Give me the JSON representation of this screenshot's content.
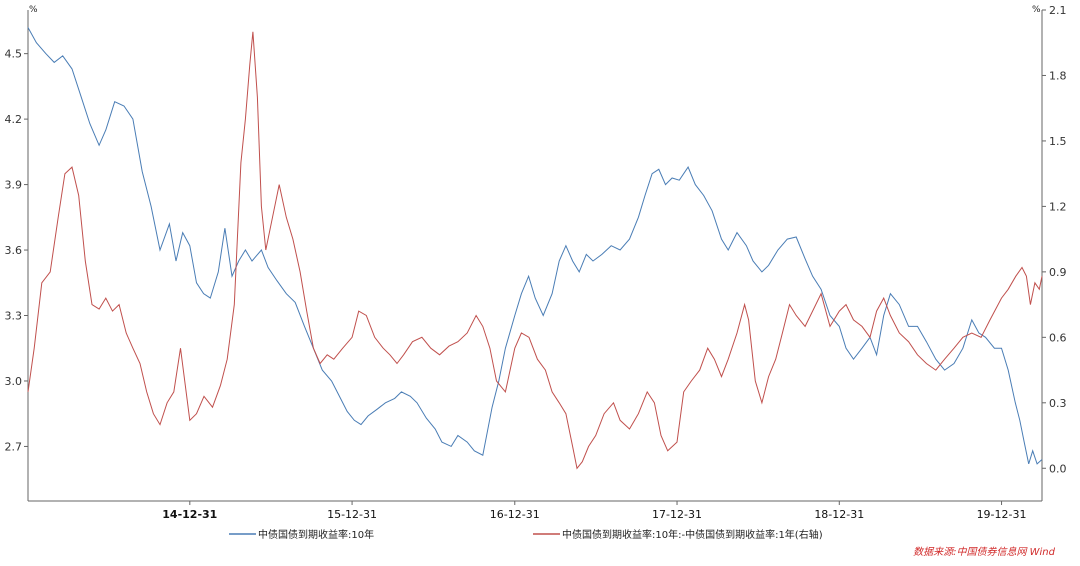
{
  "chart_data": {
    "type": "line",
    "left_unit": "%",
    "right_unit": "%",
    "left_axis": {
      "ylim": [
        2.45,
        4.7
      ],
      "ticks": [
        "2.7",
        "3.0",
        "3.3",
        "3.6",
        "3.9",
        "4.2",
        "4.5"
      ]
    },
    "right_axis": {
      "ylim": [
        -0.15,
        2.1
      ],
      "ticks": [
        "0.0",
        "0.3",
        "0.6",
        "0.9",
        "1.2",
        "1.5",
        "1.8",
        "2.1"
      ]
    },
    "x_range": [
      "2014-01-01",
      "2020-03-31"
    ],
    "x_ticks": [
      {
        "date": "2014-12-31",
        "label": "14-12-31"
      },
      {
        "date": "2015-12-31",
        "label": "15-12-31"
      },
      {
        "date": "2016-12-31",
        "label": "16-12-31"
      },
      {
        "date": "2017-12-31",
        "label": "17-12-31"
      },
      {
        "date": "2018-12-31",
        "label": "18-12-31"
      },
      {
        "date": "2019-12-31",
        "label": "19-12-31"
      }
    ],
    "series": [
      {
        "name": "中债国债到期收益率:10年",
        "axis": "left",
        "color": "#4a7db5",
        "points": [
          [
            "2014-01-01",
            4.62
          ],
          [
            "2014-01-20",
            4.55
          ],
          [
            "2014-02-10",
            4.5
          ],
          [
            "2014-03-01",
            4.46
          ],
          [
            "2014-03-20",
            4.49
          ],
          [
            "2014-04-10",
            4.43
          ],
          [
            "2014-05-01",
            4.3
          ],
          [
            "2014-05-20",
            4.18
          ],
          [
            "2014-06-10",
            4.08
          ],
          [
            "2014-06-25",
            4.15
          ],
          [
            "2014-07-15",
            4.28
          ],
          [
            "2014-08-05",
            4.26
          ],
          [
            "2014-08-25",
            4.2
          ],
          [
            "2014-09-15",
            3.96
          ],
          [
            "2014-10-05",
            3.8
          ],
          [
            "2014-10-25",
            3.6
          ],
          [
            "2014-11-15",
            3.72
          ],
          [
            "2014-11-30",
            3.55
          ],
          [
            "2014-12-15",
            3.68
          ],
          [
            "2014-12-31",
            3.62
          ],
          [
            "2015-01-15",
            3.45
          ],
          [
            "2015-01-31",
            3.4
          ],
          [
            "2015-02-15",
            3.38
          ],
          [
            "2015-03-05",
            3.5
          ],
          [
            "2015-03-20",
            3.7
          ],
          [
            "2015-04-05",
            3.48
          ],
          [
            "2015-04-20",
            3.55
          ],
          [
            "2015-05-05",
            3.6
          ],
          [
            "2015-05-20",
            3.55
          ],
          [
            "2015-06-10",
            3.6
          ],
          [
            "2015-06-25",
            3.52
          ],
          [
            "2015-07-15",
            3.46
          ],
          [
            "2015-08-05",
            3.4
          ],
          [
            "2015-08-25",
            3.36
          ],
          [
            "2015-09-15",
            3.25
          ],
          [
            "2015-10-05",
            3.15
          ],
          [
            "2015-10-25",
            3.05
          ],
          [
            "2015-11-15",
            3.0
          ],
          [
            "2015-12-05",
            2.92
          ],
          [
            "2015-12-20",
            2.86
          ],
          [
            "2016-01-05",
            2.82
          ],
          [
            "2016-01-20",
            2.8
          ],
          [
            "2016-02-05",
            2.84
          ],
          [
            "2016-02-25",
            2.87
          ],
          [
            "2016-03-15",
            2.9
          ],
          [
            "2016-04-05",
            2.92
          ],
          [
            "2016-04-20",
            2.95
          ],
          [
            "2016-05-10",
            2.93
          ],
          [
            "2016-05-25",
            2.9
          ],
          [
            "2016-06-15",
            2.83
          ],
          [
            "2016-07-05",
            2.78
          ],
          [
            "2016-07-20",
            2.72
          ],
          [
            "2016-08-10",
            2.7
          ],
          [
            "2016-08-25",
            2.75
          ],
          [
            "2016-09-15",
            2.72
          ],
          [
            "2016-10-01",
            2.68
          ],
          [
            "2016-10-20",
            2.66
          ],
          [
            "2016-11-10",
            2.88
          ],
          [
            "2016-11-25",
            3.0
          ],
          [
            "2016-12-10",
            3.15
          ],
          [
            "2016-12-31",
            3.3
          ],
          [
            "2017-01-15",
            3.4
          ],
          [
            "2017-01-31",
            3.48
          ],
          [
            "2017-02-15",
            3.38
          ],
          [
            "2017-03-05",
            3.3
          ],
          [
            "2017-03-25",
            3.4
          ],
          [
            "2017-04-10",
            3.55
          ],
          [
            "2017-04-25",
            3.62
          ],
          [
            "2017-05-10",
            3.55
          ],
          [
            "2017-05-25",
            3.5
          ],
          [
            "2017-06-10",
            3.58
          ],
          [
            "2017-06-25",
            3.55
          ],
          [
            "2017-07-15",
            3.58
          ],
          [
            "2017-08-05",
            3.62
          ],
          [
            "2017-08-25",
            3.6
          ],
          [
            "2017-09-15",
            3.65
          ],
          [
            "2017-10-05",
            3.75
          ],
          [
            "2017-10-20",
            3.85
          ],
          [
            "2017-11-05",
            3.95
          ],
          [
            "2017-11-20",
            3.97
          ],
          [
            "2017-12-05",
            3.9
          ],
          [
            "2017-12-20",
            3.93
          ],
          [
            "2018-01-05",
            3.92
          ],
          [
            "2018-01-25",
            3.98
          ],
          [
            "2018-02-10",
            3.9
          ],
          [
            "2018-03-01",
            3.85
          ],
          [
            "2018-03-20",
            3.78
          ],
          [
            "2018-04-10",
            3.65
          ],
          [
            "2018-04-25",
            3.6
          ],
          [
            "2018-05-15",
            3.68
          ],
          [
            "2018-06-05",
            3.62
          ],
          [
            "2018-06-20",
            3.55
          ],
          [
            "2018-07-10",
            3.5
          ],
          [
            "2018-07-25",
            3.53
          ],
          [
            "2018-08-15",
            3.6
          ],
          [
            "2018-09-05",
            3.65
          ],
          [
            "2018-09-25",
            3.66
          ],
          [
            "2018-10-15",
            3.56
          ],
          [
            "2018-11-01",
            3.48
          ],
          [
            "2018-11-20",
            3.42
          ],
          [
            "2018-12-10",
            3.3
          ],
          [
            "2018-12-31",
            3.25
          ],
          [
            "2019-01-15",
            3.15
          ],
          [
            "2019-02-01",
            3.1
          ],
          [
            "2019-02-20",
            3.15
          ],
          [
            "2019-03-10",
            3.2
          ],
          [
            "2019-03-25",
            3.12
          ],
          [
            "2019-04-10",
            3.3
          ],
          [
            "2019-04-25",
            3.4
          ],
          [
            "2019-05-15",
            3.35
          ],
          [
            "2019-06-05",
            3.25
          ],
          [
            "2019-06-25",
            3.25
          ],
          [
            "2019-07-15",
            3.18
          ],
          [
            "2019-08-05",
            3.1
          ],
          [
            "2019-08-25",
            3.05
          ],
          [
            "2019-09-15",
            3.08
          ],
          [
            "2019-10-05",
            3.15
          ],
          [
            "2019-10-25",
            3.28
          ],
          [
            "2019-11-10",
            3.22
          ],
          [
            "2019-11-25",
            3.2
          ],
          [
            "2019-12-15",
            3.15
          ],
          [
            "2019-12-31",
            3.15
          ],
          [
            "2020-01-15",
            3.05
          ],
          [
            "2020-01-31",
            2.9
          ],
          [
            "2020-02-10",
            2.82
          ],
          [
            "2020-02-20",
            2.72
          ],
          [
            "2020-03-01",
            2.62
          ],
          [
            "2020-03-10",
            2.68
          ],
          [
            "2020-03-20",
            2.62
          ],
          [
            "2020-03-31",
            2.64
          ]
        ]
      },
      {
        "name": "中债国债到期收益率:10年:-中债国债到期收益率:1年(右轴)",
        "axis": "right",
        "color": "#c0504d",
        "points": [
          [
            "2014-01-01",
            0.35
          ],
          [
            "2014-01-15",
            0.55
          ],
          [
            "2014-02-01",
            0.85
          ],
          [
            "2014-02-20",
            0.9
          ],
          [
            "2014-03-10",
            1.15
          ],
          [
            "2014-03-25",
            1.35
          ],
          [
            "2014-04-10",
            1.38
          ],
          [
            "2014-04-25",
            1.25
          ],
          [
            "2014-05-10",
            0.95
          ],
          [
            "2014-05-25",
            0.75
          ],
          [
            "2014-06-10",
            0.73
          ],
          [
            "2014-06-25",
            0.78
          ],
          [
            "2014-07-10",
            0.72
          ],
          [
            "2014-07-25",
            0.75
          ],
          [
            "2014-08-10",
            0.62
          ],
          [
            "2014-08-25",
            0.55
          ],
          [
            "2014-09-10",
            0.48
          ],
          [
            "2014-09-25",
            0.35
          ],
          [
            "2014-10-10",
            0.25
          ],
          [
            "2014-10-25",
            0.2
          ],
          [
            "2014-11-10",
            0.3
          ],
          [
            "2014-11-25",
            0.35
          ],
          [
            "2014-12-10",
            0.55
          ],
          [
            "2014-12-31",
            0.22
          ],
          [
            "2015-01-15",
            0.25
          ],
          [
            "2015-02-01",
            0.33
          ],
          [
            "2015-02-20",
            0.28
          ],
          [
            "2015-03-10",
            0.38
          ],
          [
            "2015-03-25",
            0.5
          ],
          [
            "2015-04-10",
            0.75
          ],
          [
            "2015-04-25",
            1.4
          ],
          [
            "2015-05-05",
            1.6
          ],
          [
            "2015-05-15",
            1.85
          ],
          [
            "2015-05-22",
            2.0
          ],
          [
            "2015-06-01",
            1.7
          ],
          [
            "2015-06-10",
            1.2
          ],
          [
            "2015-06-20",
            1.0
          ],
          [
            "2015-07-05",
            1.15
          ],
          [
            "2015-07-20",
            1.3
          ],
          [
            "2015-08-05",
            1.15
          ],
          [
            "2015-08-20",
            1.05
          ],
          [
            "2015-09-05",
            0.9
          ],
          [
            "2015-09-20",
            0.72
          ],
          [
            "2015-10-05",
            0.55
          ],
          [
            "2015-10-20",
            0.48
          ],
          [
            "2015-11-05",
            0.52
          ],
          [
            "2015-11-20",
            0.5
          ],
          [
            "2015-12-10",
            0.55
          ],
          [
            "2015-12-31",
            0.6
          ],
          [
            "2016-01-15",
            0.72
          ],
          [
            "2016-02-01",
            0.7
          ],
          [
            "2016-02-20",
            0.6
          ],
          [
            "2016-03-10",
            0.55
          ],
          [
            "2016-03-25",
            0.52
          ],
          [
            "2016-04-10",
            0.48
          ],
          [
            "2016-04-25",
            0.52
          ],
          [
            "2016-05-15",
            0.58
          ],
          [
            "2016-06-05",
            0.6
          ],
          [
            "2016-06-25",
            0.55
          ],
          [
            "2016-07-15",
            0.52
          ],
          [
            "2016-08-05",
            0.56
          ],
          [
            "2016-08-25",
            0.58
          ],
          [
            "2016-09-15",
            0.62
          ],
          [
            "2016-10-05",
            0.7
          ],
          [
            "2016-10-20",
            0.65
          ],
          [
            "2016-11-05",
            0.55
          ],
          [
            "2016-11-20",
            0.4
          ],
          [
            "2016-12-10",
            0.35
          ],
          [
            "2016-12-31",
            0.55
          ],
          [
            "2017-01-15",
            0.62
          ],
          [
            "2017-02-01",
            0.6
          ],
          [
            "2017-02-20",
            0.5
          ],
          [
            "2017-03-10",
            0.45
          ],
          [
            "2017-03-25",
            0.35
          ],
          [
            "2017-04-10",
            0.3
          ],
          [
            "2017-04-25",
            0.25
          ],
          [
            "2017-05-10",
            0.1
          ],
          [
            "2017-05-20",
            0.0
          ],
          [
            "2017-06-01",
            0.03
          ],
          [
            "2017-06-15",
            0.1
          ],
          [
            "2017-07-01",
            0.15
          ],
          [
            "2017-07-20",
            0.25
          ],
          [
            "2017-08-10",
            0.3
          ],
          [
            "2017-08-25",
            0.22
          ],
          [
            "2017-09-15",
            0.18
          ],
          [
            "2017-10-05",
            0.25
          ],
          [
            "2017-10-25",
            0.35
          ],
          [
            "2017-11-10",
            0.3
          ],
          [
            "2017-11-25",
            0.15
          ],
          [
            "2017-12-10",
            0.08
          ],
          [
            "2017-12-31",
            0.12
          ],
          [
            "2018-01-15",
            0.35
          ],
          [
            "2018-02-01",
            0.4
          ],
          [
            "2018-02-20",
            0.45
          ],
          [
            "2018-03-10",
            0.55
          ],
          [
            "2018-03-25",
            0.5
          ],
          [
            "2018-04-10",
            0.42
          ],
          [
            "2018-04-25",
            0.5
          ],
          [
            "2018-05-15",
            0.62
          ],
          [
            "2018-06-01",
            0.75
          ],
          [
            "2018-06-10",
            0.68
          ],
          [
            "2018-06-25",
            0.4
          ],
          [
            "2018-07-10",
            0.3
          ],
          [
            "2018-07-25",
            0.42
          ],
          [
            "2018-08-10",
            0.5
          ],
          [
            "2018-08-25",
            0.62
          ],
          [
            "2018-09-10",
            0.75
          ],
          [
            "2018-09-25",
            0.7
          ],
          [
            "2018-10-15",
            0.65
          ],
          [
            "2018-11-01",
            0.72
          ],
          [
            "2018-11-20",
            0.8
          ],
          [
            "2018-12-10",
            0.65
          ],
          [
            "2018-12-31",
            0.72
          ],
          [
            "2019-01-15",
            0.75
          ],
          [
            "2019-02-01",
            0.68
          ],
          [
            "2019-02-20",
            0.65
          ],
          [
            "2019-03-10",
            0.6
          ],
          [
            "2019-03-25",
            0.72
          ],
          [
            "2019-04-10",
            0.78
          ],
          [
            "2019-04-25",
            0.7
          ],
          [
            "2019-05-15",
            0.62
          ],
          [
            "2019-06-05",
            0.58
          ],
          [
            "2019-06-25",
            0.52
          ],
          [
            "2019-07-15",
            0.48
          ],
          [
            "2019-08-05",
            0.45
          ],
          [
            "2019-08-25",
            0.5
          ],
          [
            "2019-09-15",
            0.55
          ],
          [
            "2019-10-05",
            0.6
          ],
          [
            "2019-10-25",
            0.62
          ],
          [
            "2019-11-15",
            0.6
          ],
          [
            "2019-12-05",
            0.68
          ],
          [
            "2019-12-31",
            0.78
          ],
          [
            "2020-01-15",
            0.82
          ],
          [
            "2020-02-01",
            0.88
          ],
          [
            "2020-02-15",
            0.92
          ],
          [
            "2020-02-25",
            0.88
          ],
          [
            "2020-03-05",
            0.75
          ],
          [
            "2020-03-15",
            0.85
          ],
          [
            "2020-03-25",
            0.82
          ],
          [
            "2020-03-31",
            0.88
          ]
        ]
      }
    ]
  },
  "legend": {
    "item1": "中债国债到期收益率:10年",
    "item2": "中债国债到期收益率:10年:-中债国债到期收益率:1年(右轴)"
  },
  "source_label": "数据来源:中国债券信息网 Wind"
}
